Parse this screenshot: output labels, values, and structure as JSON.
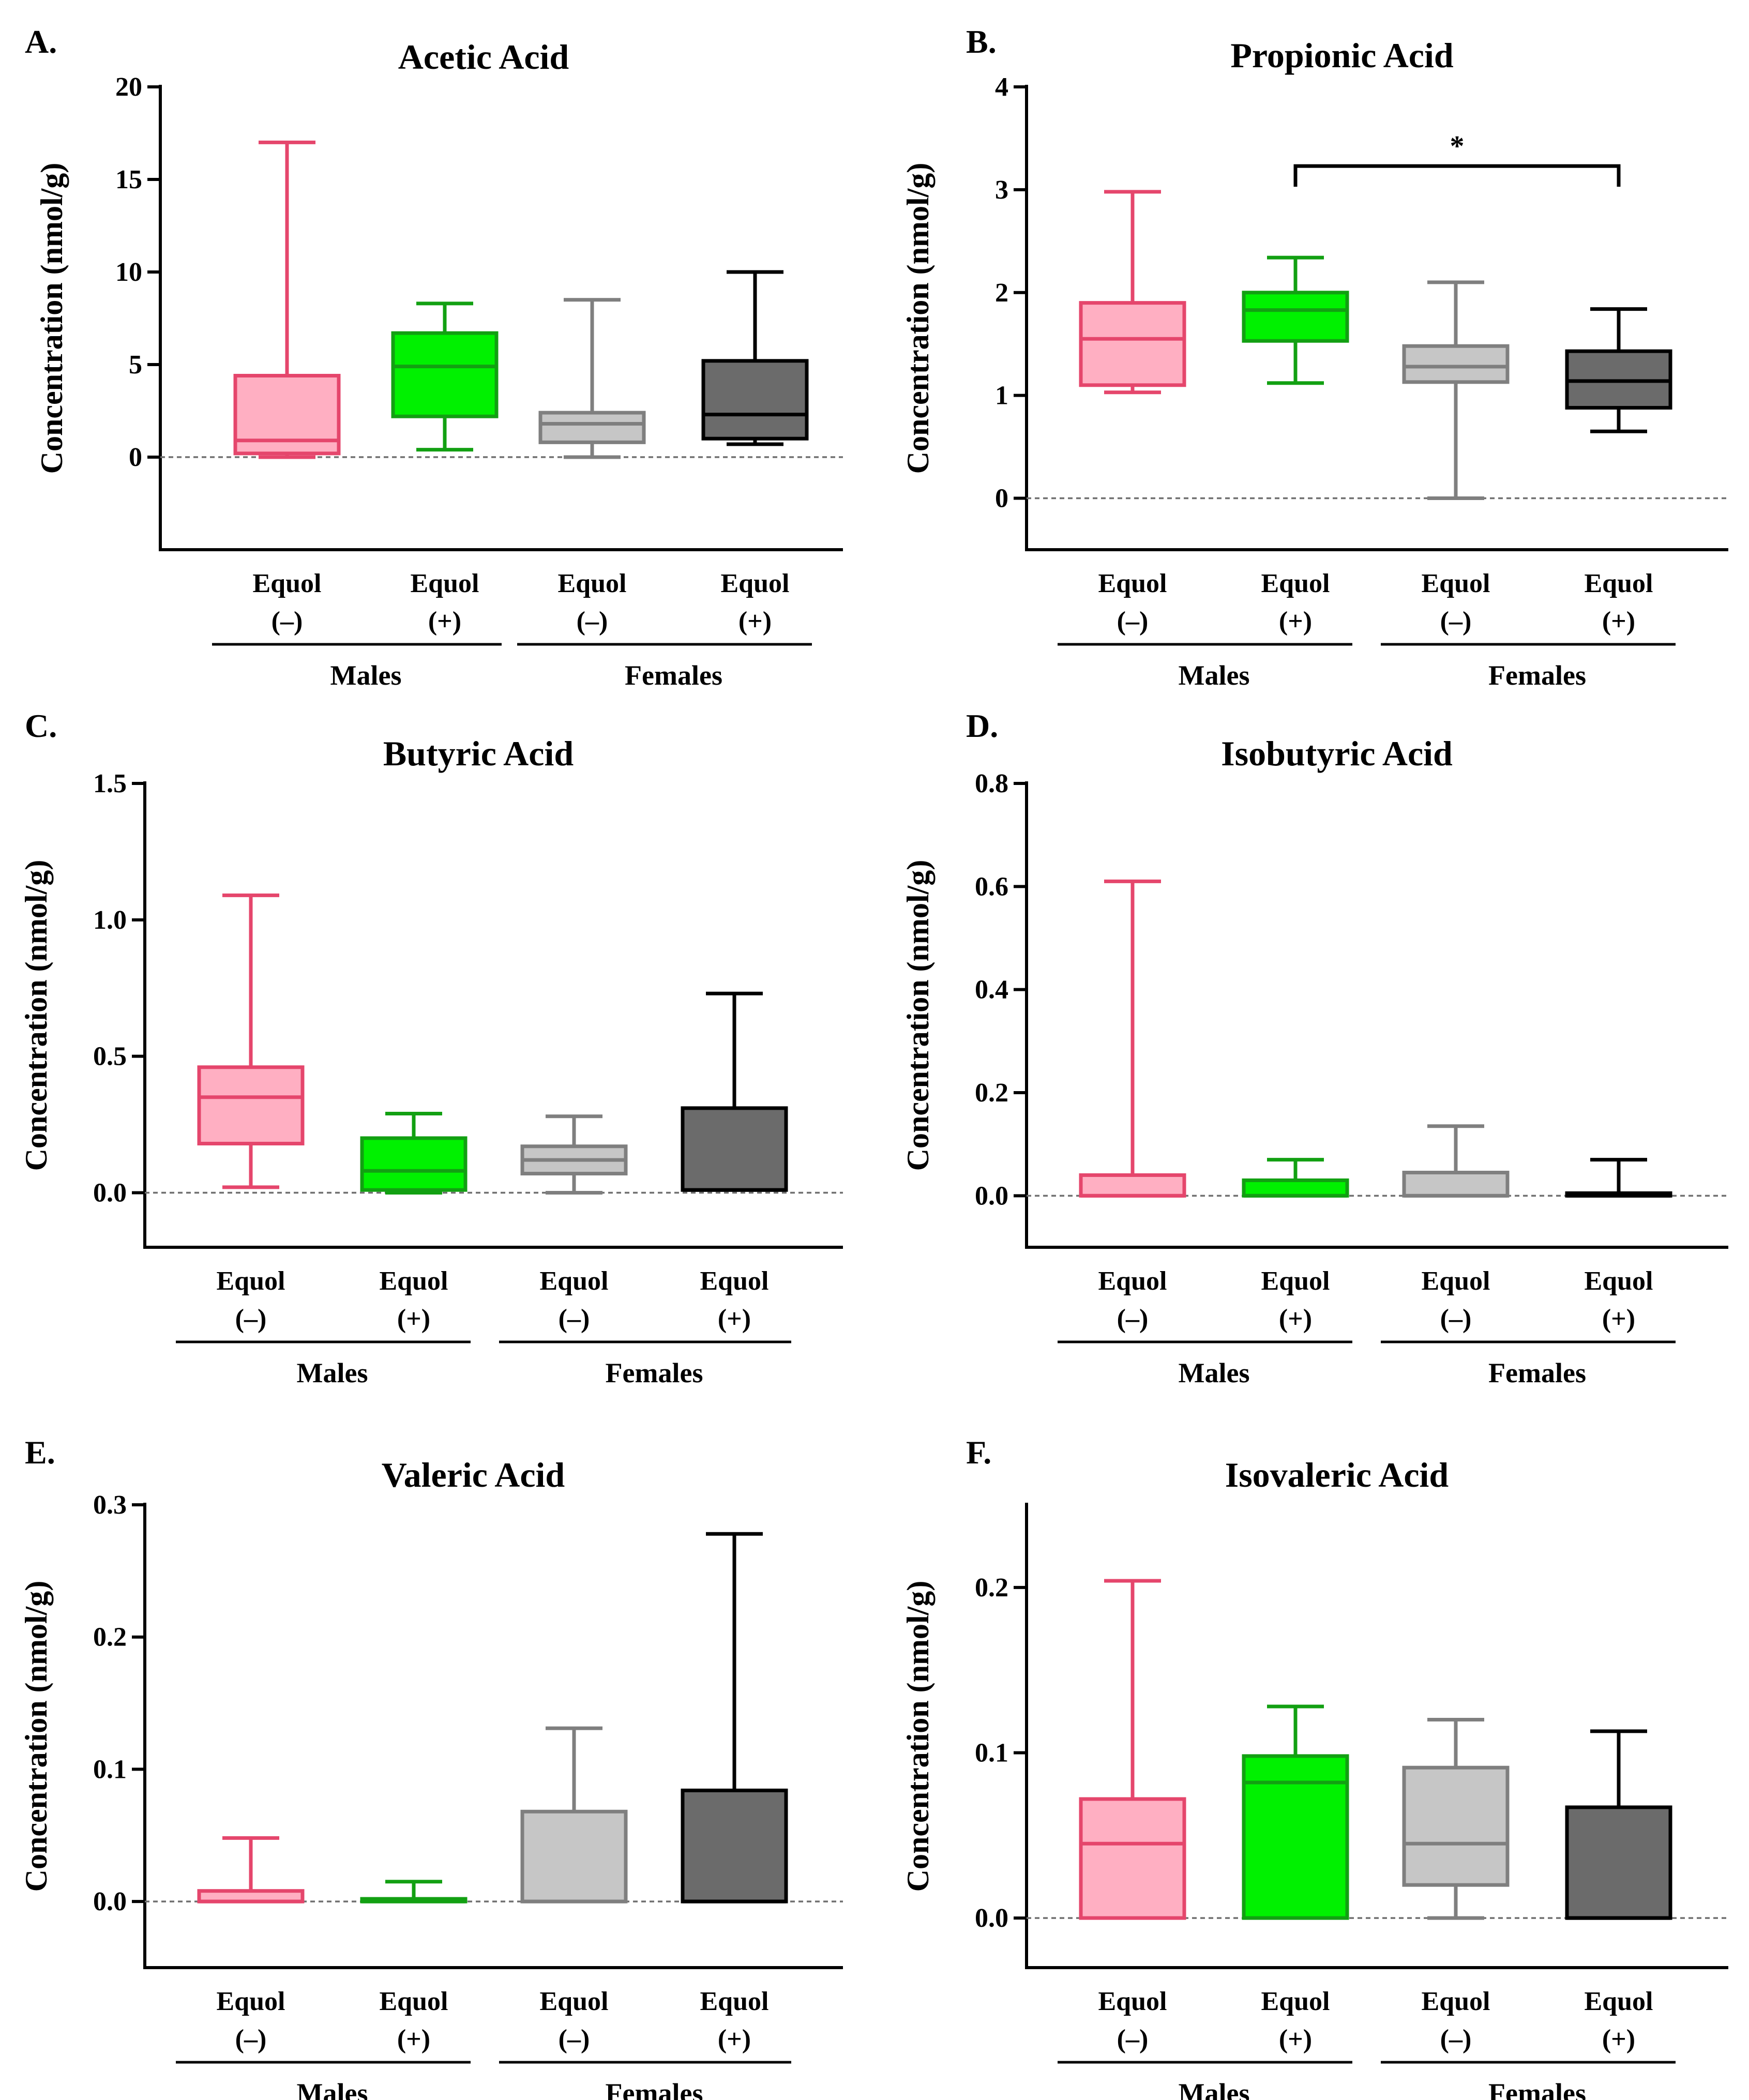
{
  "groups": [
    "Equol (–)",
    "Equol (+)",
    "Equol (–)",
    "Equol (+)"
  ],
  "xline1": [
    "Equol",
    "Equol",
    "Equol",
    "Equol"
  ],
  "xline2": [
    "(–)",
    "(+)",
    "(–)",
    "(+)"
  ],
  "sexes": [
    "Males",
    "Females"
  ],
  "ylabel": "Concentration (nmol/g)",
  "colors": {
    "fill": [
      "#ffafc2",
      "#00f100",
      "#c6c6c6",
      "#6b6b6b"
    ],
    "stroke": [
      "#e5466c",
      "#12a012",
      "#7f7f7f",
      "#000000"
    ]
  },
  "chart_data": [
    {
      "panel": "A.",
      "title": "Acetic Acid",
      "type": "box",
      "ylim": [
        -5,
        20
      ],
      "yticks": [
        0,
        5,
        10,
        15,
        20
      ],
      "ytick_labels": [
        "0",
        "5",
        "10",
        "15",
        "20"
      ],
      "boxes": [
        {
          "min": 0,
          "q1": 0.2,
          "median": 0.9,
          "q3": 4.4,
          "max": 17
        },
        {
          "min": 0.4,
          "q1": 2.2,
          "median": 4.9,
          "q3": 6.7,
          "max": 8.3
        },
        {
          "min": 0,
          "q1": 0.8,
          "median": 1.8,
          "q3": 2.4,
          "max": 8.5
        },
        {
          "min": 0.7,
          "q1": 1.0,
          "median": 2.3,
          "q3": 5.2,
          "max": 10
        }
      ],
      "significance": null
    },
    {
      "panel": "B.",
      "title": "Propionic Acid",
      "type": "box",
      "ylim": [
        -0.5,
        4
      ],
      "yticks": [
        0,
        1,
        2,
        3,
        4
      ],
      "ytick_labels": [
        "0",
        "1",
        "2",
        "3",
        "4"
      ],
      "boxes": [
        {
          "min": 1.03,
          "q1": 1.1,
          "median": 1.55,
          "q3": 1.9,
          "max": 2.98
        },
        {
          "min": 1.12,
          "q1": 1.53,
          "median": 1.83,
          "q3": 2.0,
          "max": 2.34
        },
        {
          "min": 0,
          "q1": 1.13,
          "median": 1.28,
          "q3": 1.48,
          "max": 2.1
        },
        {
          "min": 0.65,
          "q1": 0.88,
          "median": 1.14,
          "q3": 1.43,
          "max": 1.84
        }
      ],
      "significance": {
        "from": 1,
        "to": 3,
        "y": 3.23,
        "label": "*"
      }
    },
    {
      "panel": "C.",
      "title": "Butyric Acid",
      "type": "box",
      "ylim": [
        -0.2,
        1.5
      ],
      "yticks": [
        0,
        0.5,
        1.0,
        1.5
      ],
      "ytick_labels": [
        "0.0",
        "0.5",
        "1.0",
        "1.5"
      ],
      "boxes": [
        {
          "min": 0.02,
          "q1": 0.18,
          "median": 0.35,
          "q3": 0.46,
          "max": 1.09
        },
        {
          "min": 0,
          "q1": 0.01,
          "median": 0.08,
          "q3": 0.2,
          "max": 0.29
        },
        {
          "min": 0,
          "q1": 0.07,
          "median": 0.12,
          "q3": 0.17,
          "max": 0.28
        },
        {
          "min": 0.01,
          "q1": 0.01,
          "median": 0.01,
          "q3": 0.31,
          "max": 0.73
        }
      ],
      "significance": null
    },
    {
      "panel": "D.",
      "title": "Isobutyric Acid",
      "type": "box",
      "ylim": [
        -0.1,
        0.8
      ],
      "yticks": [
        0,
        0.2,
        0.4,
        0.6,
        0.8
      ],
      "ytick_labels": [
        "0.0",
        "0.2",
        "0.4",
        "0.6",
        "0.8"
      ],
      "boxes": [
        {
          "min": 0,
          "q1": 0.0,
          "median": 0.0,
          "q3": 0.04,
          "max": 0.61
        },
        {
          "min": 0,
          "q1": 0.0,
          "median": 0.0,
          "q3": 0.03,
          "max": 0.07
        },
        {
          "min": 0,
          "q1": 0.0,
          "median": 0.0,
          "q3": 0.045,
          "max": 0.135
        },
        {
          "min": 0,
          "q1": 0.0,
          "median": 0.0,
          "q3": 0.005,
          "max": 0.07
        }
      ],
      "significance": null
    },
    {
      "panel": "E.",
      "title": "Valeric Acid",
      "type": "box",
      "ylim": [
        -0.05,
        0.3
      ],
      "yticks": [
        0,
        0.1,
        0.2,
        0.3
      ],
      "ytick_labels": [
        "0.0",
        "0.1",
        "0.2",
        "0.3"
      ],
      "boxes": [
        {
          "min": 0,
          "q1": 0.0,
          "median": 0.0,
          "q3": 0.008,
          "max": 0.048
        },
        {
          "min": 0,
          "q1": 0.0,
          "median": 0.0,
          "q3": 0.002,
          "max": 0.015
        },
        {
          "min": 0,
          "q1": 0.0,
          "median": 0.0,
          "q3": 0.068,
          "max": 0.131
        },
        {
          "min": 0,
          "q1": 0.0,
          "median": 0.0,
          "q3": 0.084,
          "max": 0.278
        }
      ],
      "significance": null
    },
    {
      "panel": "F.",
      "title": "Isovaleric Acid",
      "type": "box",
      "ylim": [
        -0.03,
        0.25
      ],
      "yticks": [
        0,
        0.1,
        0.2
      ],
      "ytick_labels": [
        "0.0",
        "0.1",
        "0.2"
      ],
      "boxes": [
        {
          "min": 0,
          "q1": 0.0,
          "median": 0.045,
          "q3": 0.072,
          "max": 0.204
        },
        {
          "min": 0,
          "q1": 0.0,
          "median": 0.082,
          "q3": 0.098,
          "max": 0.128
        },
        {
          "min": 0,
          "q1": 0.02,
          "median": 0.045,
          "q3": 0.091,
          "max": 0.12
        },
        {
          "min": 0,
          "q1": 0.0,
          "median": 0.0,
          "q3": 0.067,
          "max": 0.113
        }
      ],
      "significance": null
    }
  ]
}
